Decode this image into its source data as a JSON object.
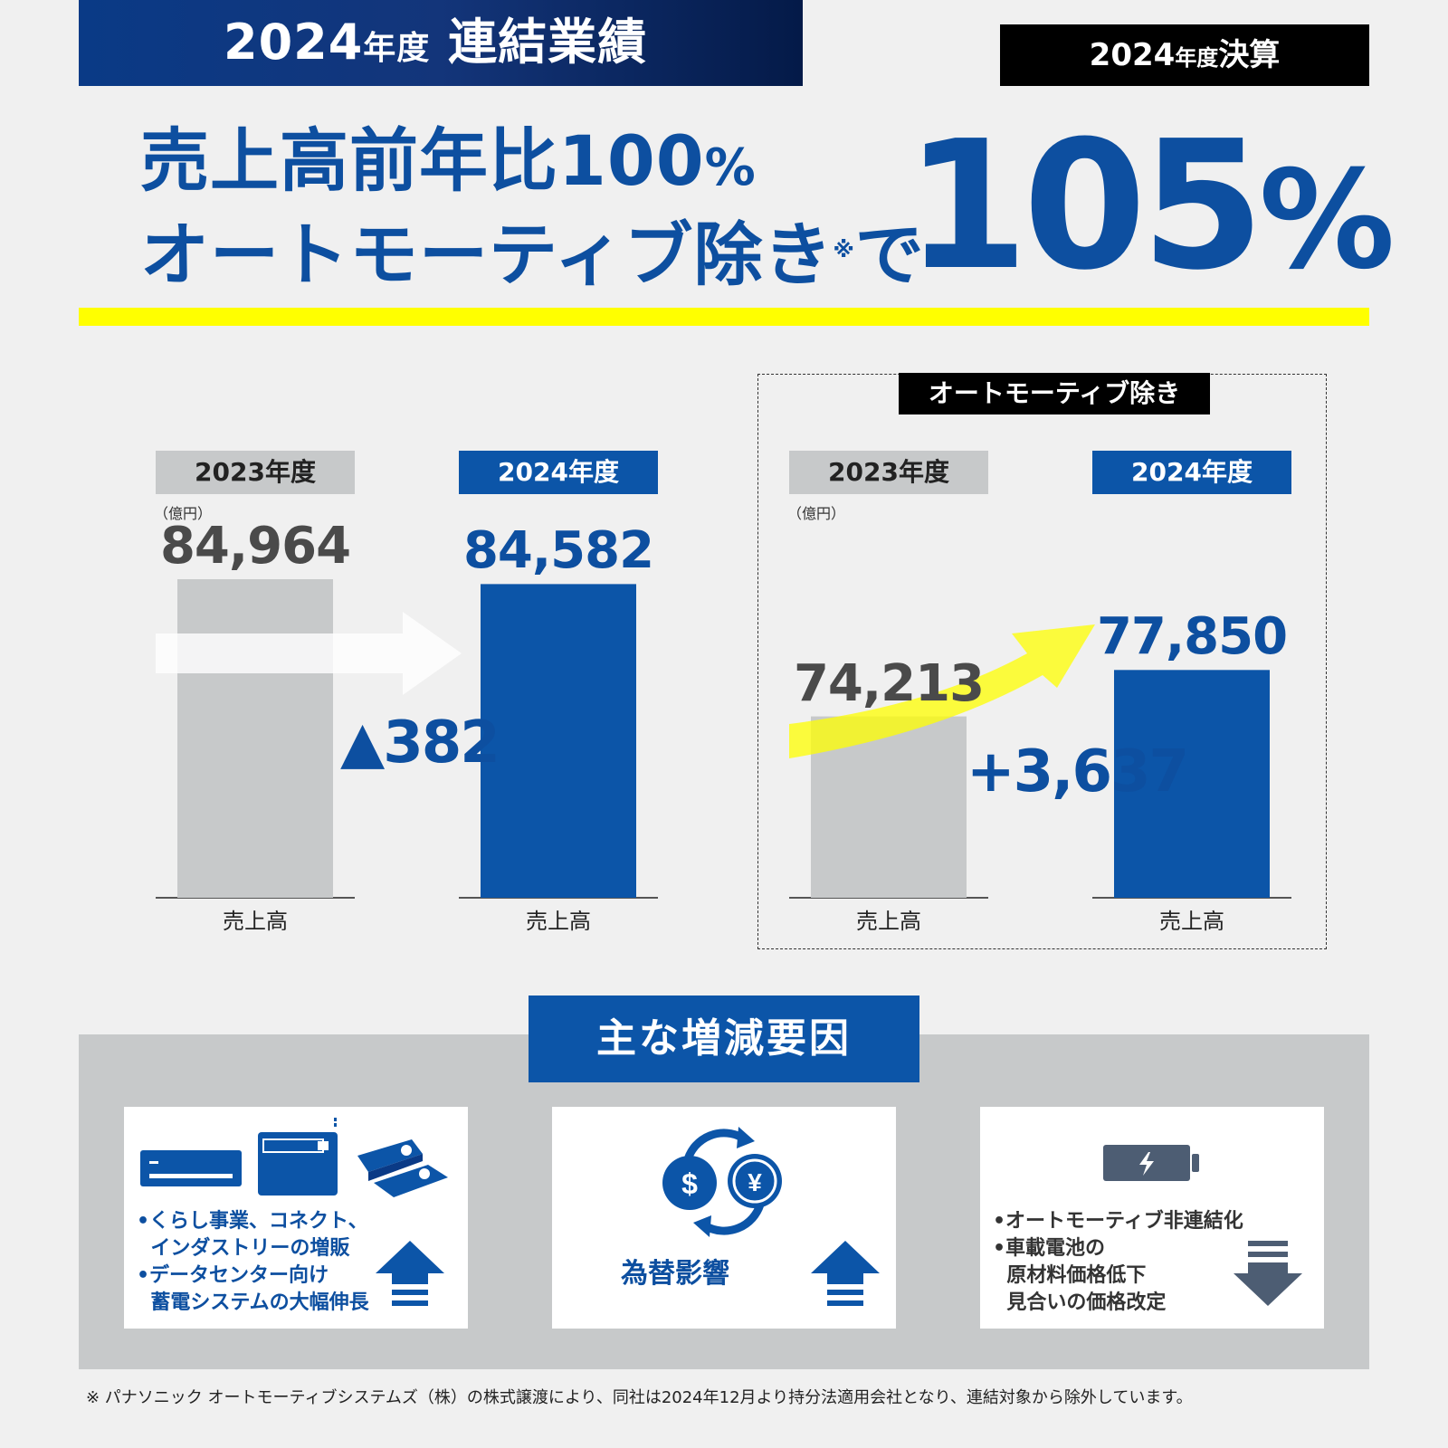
{
  "header": {
    "title_year": "2024",
    "title_nendo": "年度",
    "title_main": "連結業績",
    "badge_year": "2024",
    "badge_nendo": "年度",
    "badge_main": "決算"
  },
  "headline": {
    "line1": "売上高前年比100",
    "line1_pct": "%",
    "line2": "オートモーティブ除き",
    "note_mark": "※",
    "line2_end": "で",
    "big_value": "105",
    "big_pct": "%"
  },
  "colors": {
    "brand_blue": "#0c55a8",
    "navy": "#0a3a86",
    "gray_bar": "#c7c9ca",
    "yellow": "#ffff00"
  },
  "charts": {
    "unit": "（億円）",
    "auto_excluded_label": "オートモーティブ除き",
    "left_delta": "▲382",
    "right_delta": "+3,637"
  },
  "chart_data": [
    {
      "type": "bar",
      "categories": [
        "2023年度",
        "2024年度"
      ],
      "values": [
        84964,
        84582
      ],
      "value_labels": [
        "84,964",
        "84,582"
      ],
      "xlabel": "売上高",
      "unit": "億円",
      "change": -382
    },
    {
      "type": "bar",
      "title": "オートモーティブ除き",
      "categories": [
        "2023年度",
        "2024年度"
      ],
      "values": [
        74213,
        77850
      ],
      "value_labels": [
        "74,213",
        "77,850"
      ],
      "xlabel": "売上高",
      "unit": "億円",
      "change": 3637
    }
  ],
  "factors": {
    "title": "主な増減要因",
    "cards": [
      {
        "text": "•くらし事業、コネクト、\n  インダストリーの増販\n•データセンター向け\n  蓄電システムの大幅伸長",
        "direction": "up",
        "icons": [
          "air-conditioner-icon",
          "machine-icon",
          "battery-pack-icon"
        ]
      },
      {
        "text": "為替影響",
        "direction": "up",
        "icons": [
          "currency-exchange-icon"
        ],
        "symbols": [
          "$",
          "¥"
        ]
      },
      {
        "text": "•オートモーティブ非連結化\n•車載電池の\n  原材料価格低下\n  見合いの価格改定",
        "direction": "down",
        "icons": [
          "battery-icon"
        ]
      }
    ]
  },
  "footnote": "※ パナソニック オートモーティブシステムズ（株）の株式譲渡により、同社は2024年12月より持分法適用会社となり、連結対象から除外しています。"
}
